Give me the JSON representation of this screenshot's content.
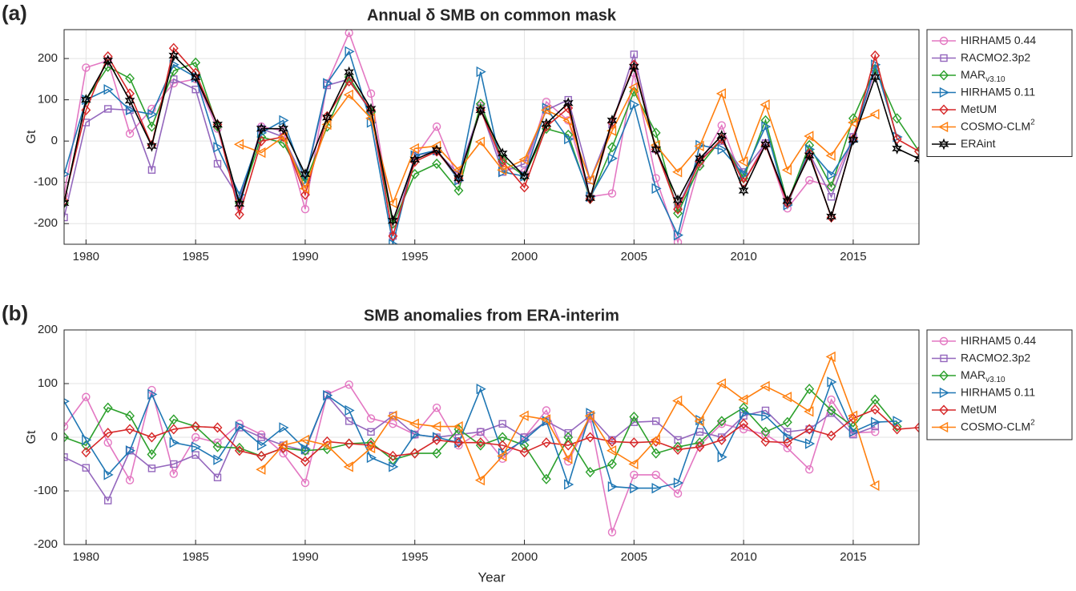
{
  "chart_data": [
    {
      "type": "line",
      "panel_label": "(a)",
      "title": "Annual δ SMB on common mask",
      "ylabel": "Gt",
      "x": [
        1979,
        1980,
        1981,
        1982,
        1983,
        1984,
        1985,
        1986,
        1987,
        1988,
        1989,
        1990,
        1991,
        1992,
        1993,
        1994,
        1995,
        1996,
        1997,
        1998,
        1999,
        2000,
        2001,
        2002,
        2003,
        2004,
        2005,
        2006,
        2007,
        2008,
        2009,
        2010,
        2011,
        2012,
        2013,
        2014,
        2015,
        2016,
        2017,
        2018
      ],
      "xlim": [
        1979,
        2018
      ],
      "xticks": [
        1980,
        1985,
        1990,
        1995,
        2000,
        2005,
        2010,
        2015
      ],
      "ylim": [
        -250,
        270
      ],
      "yticks": [
        -200,
        -100,
        0,
        100,
        200
      ],
      "grid": true,
      "legend": "right",
      "series": [
        {
          "name": "HIRHAM5 0.44",
          "color": "#e377c2",
          "marker": "circle",
          "values": [
            -130,
            178,
            195,
            18,
            78,
            140,
            150,
            30,
            -160,
            35,
            25,
            -165,
            140,
            262,
            115,
            -200,
            -40,
            35,
            -95,
            85,
            -60,
            -75,
            95,
            50,
            -135,
            -127,
            165,
            -90,
            -245,
            -55,
            38,
            -100,
            -5,
            -163,
            -95,
            -110,
            10,
            170,
            null,
            null
          ]
        },
        {
          "name": "RACMO2.3p2",
          "color": "#9467bd",
          "marker": "square",
          "values": [
            -185,
            45,
            78,
            75,
            -70,
            150,
            125,
            -55,
            -140,
            30,
            10,
            -100,
            135,
            150,
            70,
            -230,
            -35,
            -25,
            -80,
            80,
            -75,
            -55,
            75,
            100,
            -95,
            40,
            210,
            -20,
            -160,
            -45,
            0,
            -75,
            -5,
            -150,
            -30,
            -135,
            10,
            175,
            null,
            null
          ]
        },
        {
          "name": "MAR",
          "subscript": "v3.10",
          "color": "#2ca02c",
          "marker": "diamond",
          "values": [
            -150,
            100,
            180,
            152,
            35,
            170,
            190,
            35,
            -150,
            10,
            -5,
            -100,
            35,
            155,
            70,
            -200,
            -80,
            -55,
            -120,
            90,
            -45,
            -85,
            30,
            15,
            -140,
            -15,
            120,
            20,
            -175,
            -60,
            5,
            -90,
            50,
            -150,
            -10,
            -110,
            55,
            175,
            55,
            -25
          ]
        },
        {
          "name": "HIRHAM5 0.11",
          "color": "#1f77b4",
          "marker": "triangle-right",
          "values": [
            -80,
            100,
            125,
            75,
            65,
            185,
            155,
            -15,
            -130,
            20,
            50,
            -95,
            140,
            217,
            45,
            -250,
            -35,
            -22,
            -95,
            168,
            -75,
            -85,
            80,
            5,
            -135,
            -42,
            88,
            -115,
            -228,
            -10,
            -20,
            -80,
            35,
            -155,
            -20,
            -82,
            0,
            185,
            10,
            null
          ]
        },
        {
          "name": "MetUM",
          "color": "#d62728",
          "marker": "diamond",
          "values": [
            -145,
            75,
            205,
            115,
            -10,
            225,
            165,
            40,
            -178,
            0,
            10,
            -130,
            60,
            145,
            75,
            -230,
            -50,
            -25,
            -90,
            75,
            -50,
            -112,
            35,
            80,
            -140,
            45,
            185,
            -20,
            -165,
            -50,
            5,
            -100,
            -10,
            -150,
            -30,
            -185,
            5,
            207,
            5,
            -25
          ]
        },
        {
          "name": "COSMO-CLM",
          "superscript": "2",
          "color": "#ff7f0e",
          "marker": "triangle-left",
          "values": [
            null,
            null,
            null,
            null,
            null,
            null,
            null,
            null,
            -8,
            -28,
            10,
            -115,
            40,
            112,
            55,
            -150,
            -18,
            -12,
            -70,
            -2,
            -70,
            -45,
            75,
            50,
            -95,
            25,
            130,
            -10,
            -75,
            -12,
            115,
            -50,
            88,
            -70,
            12,
            -35,
            45,
            65,
            null,
            null
          ]
        },
        {
          "name": "ERAint",
          "color": "#000000",
          "marker": "star",
          "values": [
            -150,
            100,
            195,
            98,
            -12,
            207,
            155,
            40,
            -152,
            30,
            30,
            -80,
            57,
            167,
            78,
            -193,
            -45,
            -22,
            -90,
            75,
            -30,
            -85,
            42,
            92,
            -138,
            50,
            180,
            -20,
            -143,
            -42,
            13,
            -120,
            -8,
            -145,
            -35,
            -183,
            3,
            155,
            -18,
            -43
          ]
        }
      ]
    },
    {
      "type": "line",
      "panel_label": "(b)",
      "title": "SMB anomalies from ERA-interim",
      "ylabel": "Gt",
      "xlabel": "Year",
      "x": [
        1979,
        1980,
        1981,
        1982,
        1983,
        1984,
        1985,
        1986,
        1987,
        1988,
        1989,
        1990,
        1991,
        1992,
        1993,
        1994,
        1995,
        1996,
        1997,
        1998,
        1999,
        2000,
        2001,
        2002,
        2003,
        2004,
        2005,
        2006,
        2007,
        2008,
        2009,
        2010,
        2011,
        2012,
        2013,
        2014,
        2015,
        2016,
        2017,
        2018
      ],
      "xlim": [
        1979,
        2018
      ],
      "xticks": [
        1980,
        1985,
        1990,
        1995,
        2000,
        2005,
        2010,
        2015
      ],
      "ylim": [
        -200,
        200
      ],
      "yticks": [
        -200,
        -100,
        0,
        100,
        200
      ],
      "grid": true,
      "legend": "right",
      "series": [
        {
          "name": "HIRHAM5 0.44",
          "color": "#e377c2",
          "marker": "circle",
          "values": [
            20,
            75,
            -10,
            -80,
            88,
            -68,
            0,
            -10,
            25,
            5,
            -30,
            -85,
            80,
            98,
            35,
            25,
            5,
            55,
            -15,
            10,
            -40,
            0,
            50,
            -45,
            35,
            -177,
            -70,
            -70,
            -105,
            -15,
            25,
            15,
            5,
            -20,
            -60,
            70,
            8,
            10,
            null,
            null
          ]
        },
        {
          "name": "RACMO2.3p2",
          "color": "#9467bd",
          "marker": "square",
          "values": [
            -37,
            -57,
            -118,
            -25,
            -58,
            -50,
            -33,
            -75,
            18,
            0,
            -15,
            -25,
            78,
            30,
            10,
            40,
            5,
            0,
            5,
            10,
            25,
            0,
            30,
            8,
            40,
            -5,
            28,
            30,
            -5,
            10,
            0,
            40,
            50,
            10,
            15,
            45,
            5,
            20,
            null,
            null
          ]
        },
        {
          "name": "MAR",
          "subscript": "v3.10",
          "color": "#2ca02c",
          "marker": "diamond",
          "values": [
            0,
            -15,
            55,
            40,
            -32,
            33,
            20,
            -18,
            -20,
            -35,
            -20,
            -25,
            -22,
            -12,
            -10,
            -42,
            -30,
            -30,
            15,
            -15,
            0,
            -15,
            -78,
            0,
            -65,
            -50,
            38,
            -30,
            -18,
            -10,
            30,
            55,
            10,
            28,
            90,
            50,
            20,
            70,
            20,
            null
          ]
        },
        {
          "name": "HIRHAM5 0.11",
          "color": "#1f77b4",
          "marker": "triangle-right",
          "values": [
            67,
            -5,
            -70,
            -25,
            80,
            -10,
            -18,
            -42,
            20,
            -15,
            18,
            -22,
            78,
            50,
            -38,
            -55,
            5,
            0,
            -10,
            90,
            -30,
            -5,
            30,
            -88,
            45,
            -92,
            -95,
            -95,
            -85,
            32,
            -37,
            45,
            40,
            0,
            -12,
            103,
            10,
            28,
            30,
            null
          ]
        },
        {
          "name": "MetUM",
          "color": "#d62728",
          "marker": "diamond",
          "values": [
            null,
            -28,
            8,
            15,
            0,
            15,
            20,
            18,
            -25,
            -35,
            -20,
            -45,
            -8,
            -12,
            -15,
            -35,
            -30,
            -5,
            -10,
            -10,
            -15,
            -28,
            -10,
            -15,
            0,
            -8,
            -10,
            -8,
            -23,
            -18,
            -5,
            25,
            -8,
            -10,
            15,
            3,
            35,
            52,
            15,
            18
          ]
        },
        {
          "name": "COSMO-CLM",
          "superscript": "2",
          "color": "#ff7f0e",
          "marker": "triangle-left",
          "values": [
            null,
            null,
            null,
            null,
            null,
            null,
            null,
            null,
            null,
            -60,
            -15,
            -5,
            -15,
            -55,
            -20,
            40,
            25,
            20,
            20,
            -80,
            -35,
            40,
            33,
            -40,
            40,
            -25,
            -50,
            -5,
            68,
            30,
            100,
            70,
            95,
            75,
            48,
            150,
            40,
            -90,
            null,
            null
          ]
        }
      ]
    }
  ]
}
